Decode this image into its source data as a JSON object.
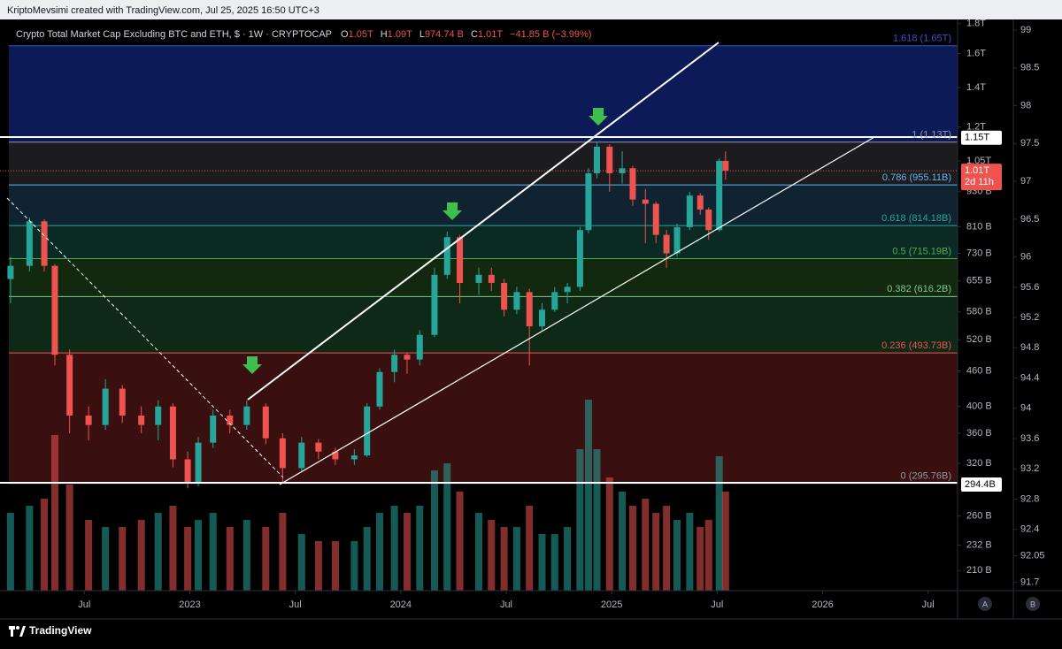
{
  "header": {
    "credit": "KriptoMevsimi created with TradingView.com, Jul 25, 2025 16:50 UTC+3",
    "symbol": "Crypto Total Market Cap Excluding BTC and ETH, $ · 1W · CRYPTOCAP",
    "ohlc": [
      {
        "k": "O",
        "v": "1.05T"
      },
      {
        "k": "H",
        "v": "1.09T"
      },
      {
        "k": "L",
        "v": "974.74 B"
      },
      {
        "k": "C",
        "v": "1.01T"
      }
    ],
    "change": "−41.85 B (−3.99%)"
  },
  "footer": {
    "brand": "TradingView",
    "buttons": [
      "A",
      "B"
    ]
  },
  "chart_data": {
    "type": "candlestick",
    "log_scale": true,
    "up_color": "#26a69a",
    "down_color": "#ef5350",
    "x": [
      2022.15,
      2022.24,
      2022.31,
      2022.36,
      2022.43,
      2022.52,
      2022.6,
      2022.68,
      2022.77,
      2022.85,
      2022.92,
      2022.99,
      2023.04,
      2023.11,
      2023.19,
      2023.27,
      2023.36,
      2023.44,
      2023.53,
      2023.61,
      2023.69,
      2023.78,
      2023.84,
      2023.9,
      2023.97,
      2024.03,
      2024.09,
      2024.16,
      2024.22,
      2024.28,
      2024.37,
      2024.43,
      2024.49,
      2024.55,
      2024.61,
      2024.67,
      2024.73,
      2024.79,
      2024.85,
      2024.89,
      2024.93,
      2024.99,
      2025.05,
      2025.1,
      2025.16,
      2025.21,
      2025.26,
      2025.31,
      2025.37,
      2025.42,
      2025.46,
      2025.51,
      2025.54
    ],
    "open": [
      660,
      695,
      828,
      695,
      490,
      386,
      372,
      429,
      386,
      372,
      400,
      325,
      297,
      347,
      386,
      372,
      400,
      353,
      314,
      347,
      335,
      325,
      330,
      400,
      458,
      490,
      481,
      530,
      671,
      778,
      650,
      671,
      650,
      585,
      627,
      548,
      585,
      627,
      640,
      800,
      1000,
      1110,
      1000,
      1020,
      902,
      887,
      785,
      730,
      809,
      916,
      867,
      800,
      1050
    ],
    "high": [
      720,
      840,
      835,
      700,
      500,
      400,
      445,
      435,
      400,
      410,
      405,
      335,
      355,
      395,
      395,
      410,
      405,
      360,
      355,
      352,
      340,
      338,
      405,
      465,
      500,
      495,
      540,
      690,
      795,
      785,
      690,
      690,
      660,
      640,
      635,
      600,
      640,
      650,
      810,
      1020,
      1130,
      1120,
      1090,
      1030,
      940,
      895,
      800,
      820,
      930,
      925,
      875,
      1060,
      1090
    ],
    "low": [
      600,
      680,
      680,
      470,
      360,
      350,
      365,
      375,
      360,
      350,
      315,
      290,
      292,
      340,
      360,
      365,
      345,
      296,
      310,
      325,
      318,
      318,
      328,
      395,
      440,
      455,
      470,
      525,
      660,
      600,
      620,
      630,
      570,
      575,
      470,
      540,
      580,
      600,
      630,
      790,
      980,
      930,
      960,
      880,
      760,
      760,
      690,
      720,
      800,
      850,
      770,
      795,
      974.74
    ],
    "close": [
      695,
      828,
      695,
      490,
      386,
      372,
      429,
      386,
      372,
      400,
      325,
      297,
      347,
      386,
      372,
      400,
      353,
      314,
      347,
      335,
      325,
      330,
      400,
      458,
      490,
      481,
      530,
      671,
      778,
      650,
      671,
      650,
      585,
      627,
      548,
      585,
      627,
      640,
      800,
      1000,
      1110,
      1000,
      1020,
      902,
      887,
      785,
      730,
      809,
      916,
      867,
      800,
      1050,
      1010
    ],
    "volume": [
      55,
      60,
      65,
      110,
      75,
      50,
      45,
      45,
      50,
      55,
      60,
      45,
      50,
      55,
      45,
      50,
      45,
      55,
      40,
      35,
      35,
      35,
      45,
      55,
      60,
      55,
      60,
      85,
      90,
      70,
      55,
      50,
      45,
      45,
      60,
      40,
      40,
      45,
      100,
      135,
      100,
      80,
      70,
      60,
      65,
      55,
      60,
      50,
      55,
      45,
      50,
      95,
      70
    ],
    "volume_lim": [
      0,
      100
    ],
    "xlim": [
      2022.1,
      2026.64
    ],
    "xticks": [
      {
        "value": 2022.5,
        "label": "Jul"
      },
      2023,
      {
        "value": 2023.5,
        "label": "Jul"
      },
      2024,
      {
        "value": 2024.5,
        "label": "Jul"
      },
      2025,
      {
        "value": 2025.5,
        "label": "Jul"
      },
      2026,
      {
        "value": 2026.5,
        "label": "Jul"
      }
    ],
    "ylim": [
      194,
      1830
    ],
    "yticks": [
      {
        "value": 1800,
        "label": "1.8T"
      },
      {
        "value": 1600,
        "label": "1.6T"
      },
      {
        "value": 1400,
        "label": "1.4T"
      },
      {
        "value": 1200,
        "label": "1.2T"
      },
      {
        "value": 1050,
        "label": "1.05T"
      },
      {
        "value": 930,
        "label": "930 B"
      },
      {
        "value": 810,
        "label": "810 B"
      },
      {
        "value": 730,
        "label": "730 B"
      },
      {
        "value": 655,
        "label": "655 B"
      },
      {
        "value": 580,
        "label": "580 B"
      },
      {
        "value": 520,
        "label": "520 B"
      },
      {
        "value": 460,
        "label": "460 B"
      },
      {
        "value": 400,
        "label": "400 B"
      },
      {
        "value": 360,
        "label": "360 B"
      },
      {
        "value": 320,
        "label": "320 B"
      },
      {
        "value": 260,
        "label": "260 B"
      },
      {
        "value": 232,
        "label": "232 B"
      },
      {
        "value": 210,
        "label": "210 B"
      }
    ],
    "y2lim": [
      91.59,
      99.14
    ],
    "y2ticks": [
      99,
      98.5,
      98,
      97.5,
      97,
      96.5,
      96,
      95.6,
      95.2,
      94.8,
      94.4,
      94,
      93.6,
      93.2,
      92.8,
      92.4,
      92.05,
      91.7
    ],
    "fib_levels": [
      {
        "label": "1.618 (1.65T)",
        "value": 1650,
        "color": "#3f51c8",
        "fill": "#0d1a58"
      },
      {
        "label": "1 (1.13T)",
        "value": 1130,
        "color": "#9598a1",
        "fill": "#1c1c1f"
      },
      {
        "label": "0.786 (955.11B)",
        "value": 955.11,
        "color": "#64b5f6",
        "fill": "#0f2430"
      },
      {
        "label": "0.618 (814.18B)",
        "value": 814.18,
        "color": "#26a69a",
        "fill": "#0b2a24"
      },
      {
        "label": "0.5 (715.19B)",
        "value": 715.19,
        "color": "#4caf50",
        "fill": "#12290f"
      },
      {
        "label": "0.382 (616.2B)",
        "value": 616.2,
        "color": "#81c784",
        "fill": "#0e2a16"
      },
      {
        "label": "0.236 (493.73B)",
        "value": 493.73,
        "color": "#f05350",
        "fill": "#3a0f10"
      },
      {
        "label": "0 (295.76B)",
        "value": 295.76,
        "color": "#9598a1"
      }
    ],
    "price_badges": [
      {
        "label": "1.15T",
        "value": 1150
      },
      {
        "label": "294.4B",
        "value": 294.4
      }
    ],
    "current": {
      "label": "1.01T",
      "countdown": "2d 11h"
    }
  }
}
